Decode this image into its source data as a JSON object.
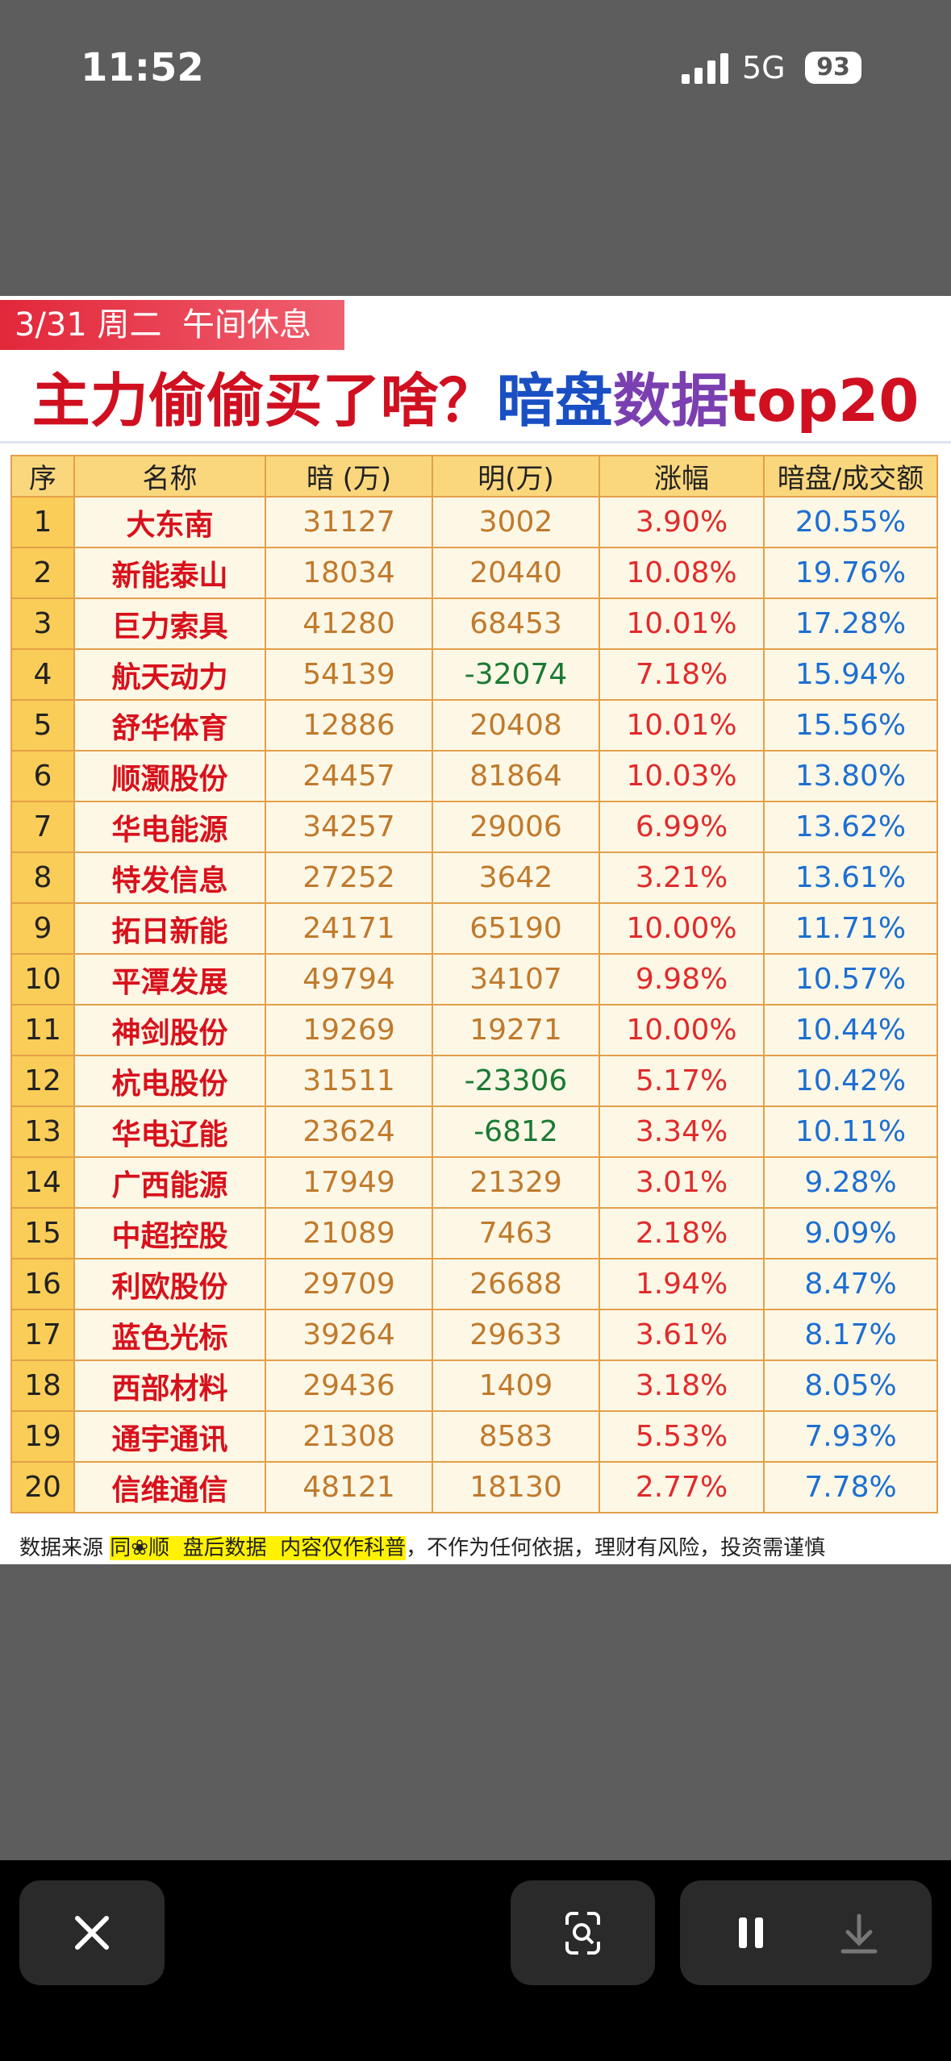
{
  "status_bar": {
    "time": "11:52",
    "network": "5G",
    "battery": "93"
  },
  "banner": "3/31 周二  午间休息",
  "title": {
    "part1": "主力偷偷买了啥？",
    "part2": "暗盘",
    "part3": "数据",
    "part4": "top20"
  },
  "table": {
    "header": [
      "序",
      "名称",
      "暗 (万)",
      "明(万)",
      "涨幅",
      "暗盘/成交额"
    ],
    "rows": [
      [
        "1",
        "大东南",
        "31127",
        "3002",
        "3.90%",
        "20.55%"
      ],
      [
        "2",
        "新能泰山",
        "18034",
        "20440",
        "10.08%",
        "19.76%"
      ],
      [
        "3",
        "巨力索具",
        "41280",
        "68453",
        "10.01%",
        "17.28%"
      ],
      [
        "4",
        "航天动力",
        "54139",
        "-32074",
        "7.18%",
        "15.94%"
      ],
      [
        "5",
        "舒华体育",
        "12886",
        "20408",
        "10.01%",
        "15.56%"
      ],
      [
        "6",
        "顺灏股份",
        "24457",
        "81864",
        "10.03%",
        "13.80%"
      ],
      [
        "7",
        "华电能源",
        "34257",
        "29006",
        "6.99%",
        "13.62%"
      ],
      [
        "8",
        "特发信息",
        "27252",
        "3642",
        "3.21%",
        "13.61%"
      ],
      [
        "9",
        "拓日新能",
        "24171",
        "65190",
        "10.00%",
        "11.71%"
      ],
      [
        "10",
        "平潭发展",
        "49794",
        "34107",
        "9.98%",
        "10.57%"
      ],
      [
        "11",
        "神剑股份",
        "19269",
        "19271",
        "10.00%",
        "10.44%"
      ],
      [
        "12",
        "杭电股份",
        "31511",
        "-23306",
        "5.17%",
        "10.42%"
      ],
      [
        "13",
        "华电辽能",
        "23624",
        "-6812",
        "3.34%",
        "10.11%"
      ],
      [
        "14",
        "广西能源",
        "17949",
        "21329",
        "3.01%",
        "9.28%"
      ],
      [
        "15",
        "中超控股",
        "21089",
        "7463",
        "2.18%",
        "9.09%"
      ],
      [
        "16",
        "利欧股份",
        "29709",
        "26688",
        "1.94%",
        "8.47%"
      ],
      [
        "17",
        "蓝色光标",
        "39264",
        "29633",
        "3.61%",
        "8.17%"
      ],
      [
        "18",
        "西部材料",
        "29436",
        "1409",
        "3.18%",
        "8.05%"
      ],
      [
        "19",
        "通宇通讯",
        "21308",
        "8583",
        "5.53%",
        "7.93%"
      ],
      [
        "20",
        "信维通信",
        "48121",
        "18130",
        "2.77%",
        "7.78%"
      ]
    ]
  },
  "footer": {
    "source": "数据来源",
    "highlight": "同❀顺  盘后数据  内容仅作科普",
    "note": "，不作为任何依据，理财有风险，投资需谨慎"
  }
}
